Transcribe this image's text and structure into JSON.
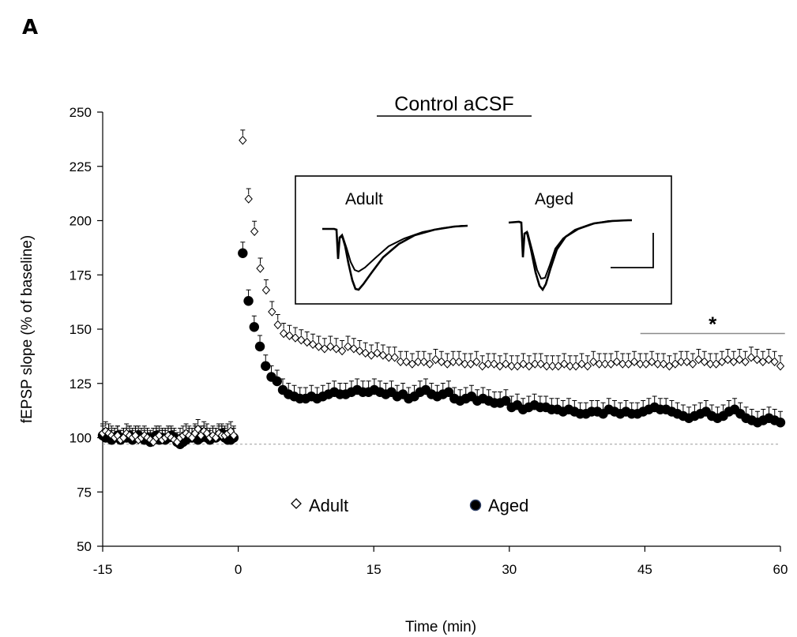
{
  "panel_label": "A",
  "chart_data": {
    "type": "scatter",
    "title": "Control aCSF",
    "xlabel": "Time (min)",
    "ylabel": "fEPSP slope (% of baseline)",
    "xlim": [
      -15,
      60
    ],
    "ylim": [
      50,
      250
    ],
    "xticks": [
      -15,
      0,
      15,
      30,
      45,
      60
    ],
    "yticks": [
      50,
      75,
      100,
      125,
      150,
      175,
      200,
      225,
      250
    ],
    "x_tick_labels": [
      "-15",
      "0",
      "15",
      "30",
      "45",
      "60"
    ],
    "y_tick_labels": [
      "50",
      "75",
      "100",
      "125",
      "150",
      "175",
      "200",
      "225",
      "250"
    ],
    "baseline_reference": 97,
    "grid": false,
    "legend": {
      "placement": "bottom-center",
      "entries": [
        {
          "label": "Adult",
          "marker": "open-diamond",
          "symbol": "◇"
        },
        {
          "label": "Aged",
          "marker": "filled-circle",
          "symbol": "●"
        }
      ]
    },
    "significance": {
      "label": "*",
      "x_start": 44.5,
      "x_end": 60.5,
      "y": 148
    },
    "inset": {
      "labels": [
        "Adult",
        "Aged"
      ]
    },
    "series": [
      {
        "name": "Adult",
        "marker": "open-diamond",
        "color": "#000000",
        "baseline": {
          "x_start": -15,
          "x_end": -0.5,
          "values": [
            102,
            103,
            102,
            101,
            100,
            101,
            99,
            100,
            102,
            101,
            100,
            101,
            99,
            100,
            101,
            100,
            99,
            98,
            100,
            101,
            99,
            100,
            101,
            100,
            99,
            98,
            100,
            101,
            102,
            101,
            100,
            102,
            104,
            101,
            103,
            102,
            100,
            101,
            100,
            102,
            101,
            101,
            102,
            103,
            101
          ]
        },
        "post": {
          "x_start": 0.5,
          "x_end": 60,
          "values": [
            237,
            210,
            195,
            178,
            168,
            158,
            152,
            148,
            147,
            146,
            145,
            144,
            143,
            142,
            141,
            142,
            141,
            140,
            142,
            141,
            140,
            139,
            138,
            139,
            138,
            137,
            137,
            135,
            135,
            134,
            135,
            135,
            134,
            136,
            135,
            134,
            135,
            135,
            134,
            134,
            135,
            133,
            134,
            134,
            133,
            134,
            133,
            133,
            134,
            133,
            134,
            134,
            133,
            133,
            133,
            134,
            133,
            133,
            134,
            133,
            135,
            134,
            134,
            134,
            135,
            134,
            134,
            135,
            134,
            134,
            135,
            134,
            134,
            133,
            134,
            135,
            135,
            134,
            136,
            135,
            134,
            134,
            135,
            136,
            135,
            136,
            135,
            137,
            136,
            135,
            136,
            135,
            133
          ]
        }
      },
      {
        "name": "Aged",
        "marker": "filled-circle",
        "color": "#000000",
        "baseline": {
          "x_start": -15,
          "x_end": -0.5,
          "values": [
            101,
            100,
            100,
            99,
            100,
            101,
            99,
            100,
            100,
            101,
            99,
            100,
            101,
            100,
            99,
            100,
            98,
            100,
            101,
            99,
            100,
            99,
            100,
            101,
            100,
            98,
            97,
            98,
            99,
            100,
            100,
            101,
            99,
            100,
            101,
            100,
            99,
            100,
            100,
            101,
            102,
            100,
            99,
            99,
            100
          ]
        },
        "post": {
          "x_start": 0.5,
          "x_end": 60,
          "values": [
            185,
            163,
            151,
            142,
            133,
            128,
            126,
            122,
            120,
            119,
            118,
            118,
            119,
            118,
            119,
            120,
            121,
            120,
            120,
            121,
            122,
            121,
            121,
            122,
            121,
            120,
            121,
            119,
            120,
            118,
            119,
            121,
            122,
            120,
            119,
            120,
            121,
            118,
            117,
            118,
            119,
            117,
            118,
            117,
            116,
            116,
            117,
            114,
            115,
            113,
            114,
            115,
            114,
            114,
            113,
            113,
            112,
            113,
            112,
            111,
            111,
            112,
            112,
            111,
            113,
            112,
            111,
            112,
            111,
            111,
            112,
            113,
            114,
            113,
            113,
            112,
            111,
            110,
            109,
            110,
            111,
            112,
            110,
            109,
            110,
            112,
            113,
            111,
            109,
            108,
            107,
            108,
            109,
            108,
            107
          ]
        }
      }
    ]
  }
}
